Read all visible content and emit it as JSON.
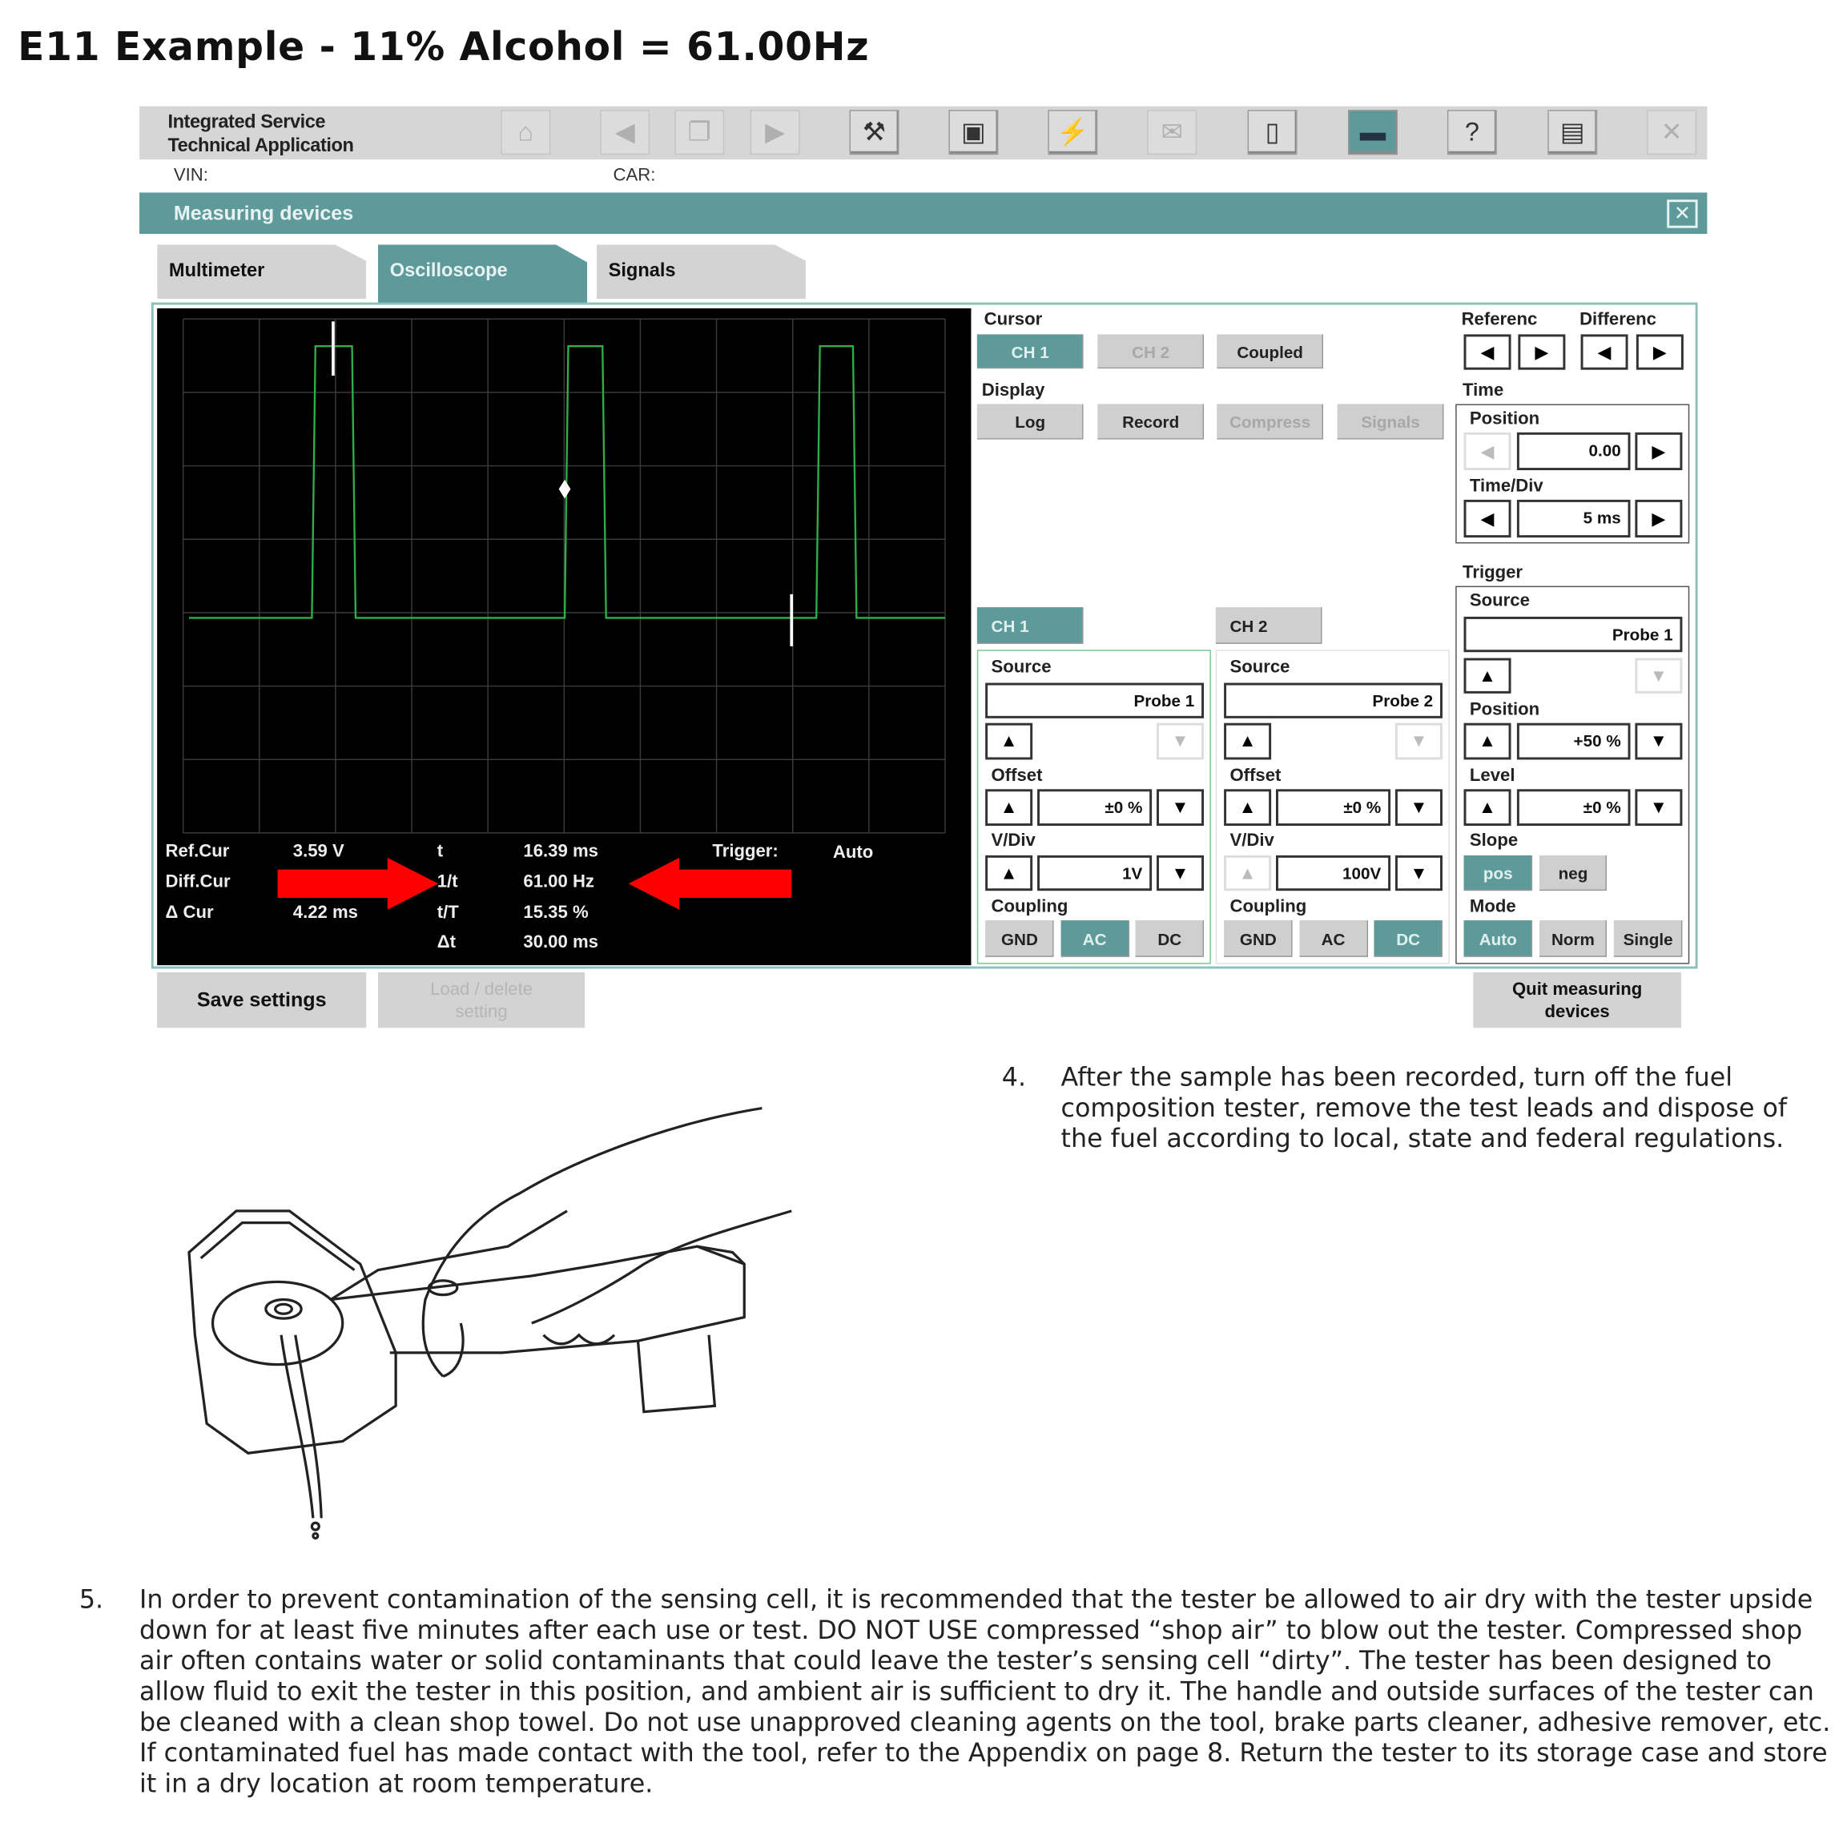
{
  "page_title": "E11 Example - 11% Alcohol = 61.00Hz",
  "app": {
    "name_line1": "Integrated Service",
    "name_line2": "Technical Application",
    "toolbar_icons": [
      "home-icon",
      "back-icon",
      "documents-icon",
      "forward-icon",
      "wrench-icon",
      "vehicle-data-icon",
      "connection-icon",
      "mail-icon",
      "battery-icon",
      "measuring-devices-icon",
      "help-icon",
      "print-icon",
      "close-icon"
    ],
    "vin_label": "VIN:",
    "car_label": "CAR:",
    "accent": "#5f9a9a"
  },
  "dialog": {
    "title": "Measuring devices",
    "tabs": [
      {
        "label": "Multimeter"
      },
      {
        "label": "Oscilloscope",
        "active": true
      },
      {
        "label": "Signals"
      }
    ]
  },
  "readout": {
    "ref_cur_label": "Ref.Cur",
    "ref_cur_value": "3.59 V",
    "diff_cur_label": "Diff.Cur",
    "delta_cur_label": "Δ Cur",
    "delta_cur_value": "4.22 ms",
    "t_label": "t",
    "t_value": "16.39 ms",
    "inv_t_label": "1/t",
    "inv_t_value": "61.00 Hz",
    "tT_label": "t/T",
    "tT_value": "15.35 %",
    "dt_label": "Δt",
    "dt_value": "30.00 ms",
    "trigger_label": "Trigger:",
    "trigger_value": "Auto"
  },
  "cursor": {
    "label": "Cursor",
    "ch1": "CH 1",
    "ch2": "CH 2",
    "coupled": "Coupled"
  },
  "display": {
    "label": "Display",
    "log": "Log",
    "record": "Record",
    "compress": "Compress",
    "signals": "Signals"
  },
  "reference_label": "Referenc",
  "difference_label": "Differenc",
  "time": {
    "label": "Time",
    "position_label": "Position",
    "position_value": "0.00",
    "timediv_label": "Time/Div",
    "timediv_value": "5 ms"
  },
  "channels": [
    {
      "tab": "CH 1",
      "source_label": "Source",
      "source_value": "Probe 1",
      "offset_label": "Offset",
      "offset_value": "±0 %",
      "vdiv_label": "V/Div",
      "vdiv_value": "1V",
      "coupling_label": "Coupling",
      "coupling": [
        "GND",
        "AC",
        "DC"
      ],
      "coupling_selected": "AC"
    },
    {
      "tab": "CH 2",
      "source_label": "Source",
      "source_value": "Probe 2",
      "offset_label": "Offset",
      "offset_value": "±0 %",
      "vdiv_label": "V/Div",
      "vdiv_value": "100V",
      "coupling_label": "Coupling",
      "coupling": [
        "GND",
        "AC",
        "DC"
      ],
      "coupling_selected": "DC"
    }
  ],
  "trigger": {
    "label": "Trigger",
    "source_label": "Source",
    "source_value": "Probe 1",
    "position_label": "Position",
    "position_value": "+50 %",
    "level_label": "Level",
    "level_value": "±0 %",
    "slope_label": "Slope",
    "pos": "pos",
    "neg": "neg",
    "mode_label": "Mode",
    "auto": "Auto",
    "norm": "Norm",
    "single": "Single"
  },
  "bottom": {
    "save": "Save settings",
    "load": "Load / delete setting",
    "quit": "Quit measuring devices"
  },
  "steps": [
    {
      "num": "4.",
      "text": "After the sample has been recorded, turn off the fuel composition tester, remove the test leads and dispose of the fuel according to local, state and federal regulations."
    },
    {
      "num": "5.",
      "text": "In order to prevent contamination of the sensing cell, it is recommended that the tester be allowed to air dry with the tester upside down for at least five minutes after each use or test. DO NOT USE compressed “shop air” to blow out the tester. Compressed shop air often contains water or solid contaminants that could leave the tester’s sensing cell “dirty”. The tester has been designed to allow fluid to exit the tester in this position, and ambient air is sufficient to dry it. The handle and outside surfaces of the tester can be cleaned with a clean shop towel. Do not use unapproved cleaning agents on the tool, brake parts cleaner, adhesive remover, etc. If contaminated fuel has made contact with the tool, refer to the Appendix on page 8. Return the tester to its storage case and store it in a dry location at room temperature."
    }
  ]
}
